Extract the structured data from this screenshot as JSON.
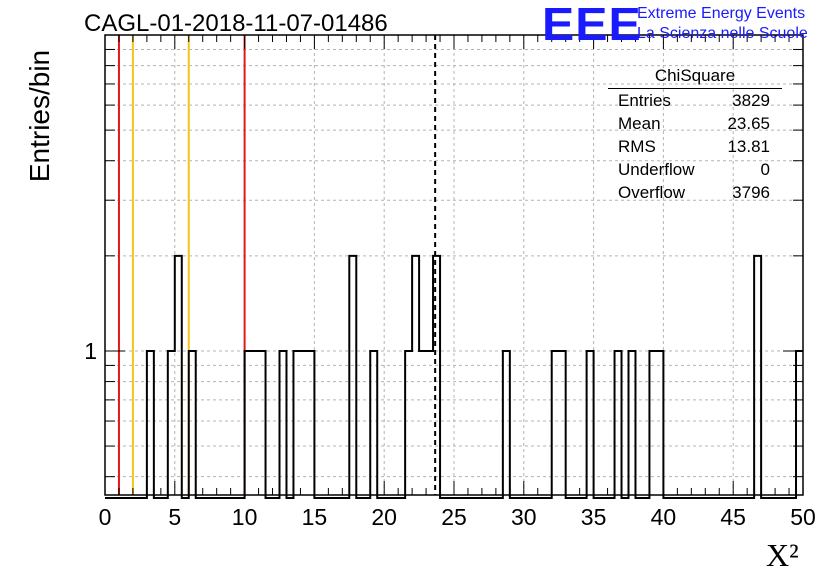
{
  "title": "CAGL-01-2018-11-07-01486",
  "logo": {
    "text": "EEE",
    "line1": "Extreme Energy Events",
    "line2": "La Scienza nelle Scuole",
    "color": "#1a1aff"
  },
  "stats": {
    "header": "ChiSquare",
    "rows": [
      {
        "label": "Entries",
        "value": "3829"
      },
      {
        "label": "Mean",
        "value": "23.65"
      },
      {
        "label": "RMS",
        "value": "13.81"
      },
      {
        "label": "Underflow",
        "value": "0"
      },
      {
        "label": "Overflow",
        "value": "3796"
      }
    ]
  },
  "chart_data": {
    "type": "histogram",
    "title": "CAGL-01-2018-11-07-01486",
    "xlabel": "X²",
    "ylabel": "Entries/bin",
    "xlim": [
      0,
      50
    ],
    "ylim": [
      0.35,
      10
    ],
    "ylog": true,
    "grid": true,
    "bin_width": 0.5,
    "bins": [
      {
        "x": 3.0,
        "y": 1
      },
      {
        "x": 4.5,
        "y": 1
      },
      {
        "x": 5.0,
        "y": 2
      },
      {
        "x": 6.0,
        "y": 1
      },
      {
        "x": 10.0,
        "y": 1
      },
      {
        "x": 10.5,
        "y": 1
      },
      {
        "x": 11.0,
        "y": 1
      },
      {
        "x": 12.5,
        "y": 1
      },
      {
        "x": 13.5,
        "y": 1
      },
      {
        "x": 14.0,
        "y": 1
      },
      {
        "x": 14.5,
        "y": 1
      },
      {
        "x": 17.5,
        "y": 2
      },
      {
        "x": 19.0,
        "y": 1
      },
      {
        "x": 21.5,
        "y": 1
      },
      {
        "x": 22.0,
        "y": 2
      },
      {
        "x": 22.5,
        "y": 1
      },
      {
        "x": 23.0,
        "y": 1
      },
      {
        "x": 23.5,
        "y": 2
      },
      {
        "x": 28.5,
        "y": 1
      },
      {
        "x": 32.0,
        "y": 1
      },
      {
        "x": 32.5,
        "y": 1
      },
      {
        "x": 34.5,
        "y": 1
      },
      {
        "x": 36.5,
        "y": 1
      },
      {
        "x": 37.5,
        "y": 1
      },
      {
        "x": 39.0,
        "y": 1
      },
      {
        "x": 39.5,
        "y": 1
      },
      {
        "x": 46.5,
        "y": 2
      },
      {
        "x": 49.5,
        "y": 1
      }
    ],
    "xticks": [
      0,
      5,
      10,
      15,
      20,
      25,
      30,
      35,
      40,
      45,
      50
    ],
    "yticks": [
      1
    ],
    "vertical_lines": [
      {
        "x": 1.0,
        "color": "#e0191b",
        "style": "solid"
      },
      {
        "x": 2.0,
        "color": "#f2c51a",
        "style": "solid"
      },
      {
        "x": 6.0,
        "color": "#f2c51a",
        "style": "solid"
      },
      {
        "x": 10.0,
        "color": "#e0191b",
        "style": "solid"
      },
      {
        "x": 23.65,
        "color": "#000000",
        "style": "dashed"
      }
    ]
  }
}
